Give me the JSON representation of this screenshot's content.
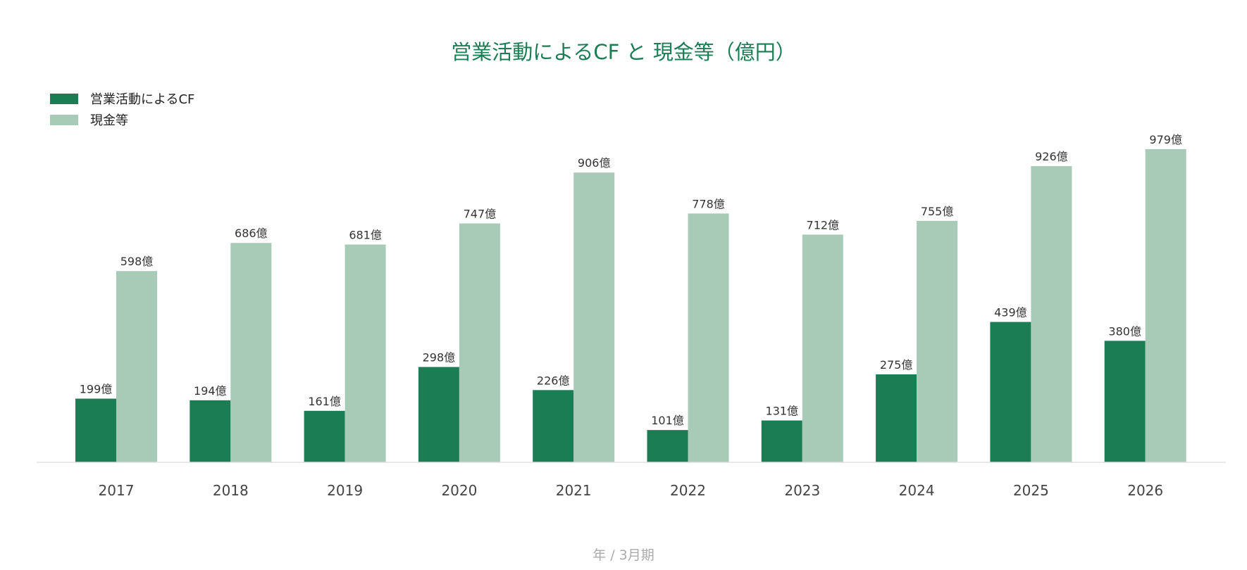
{
  "chart_data": {
    "type": "bar",
    "title": "営業活動によるCF と 現金等（億円）",
    "xlabel": "年 / 3月期",
    "ylabel": "",
    "categories": [
      "2017",
      "2018",
      "2019",
      "2020",
      "2021",
      "2022",
      "2023",
      "2024",
      "2025",
      "2026"
    ],
    "series": [
      {
        "name": "営業活動によるCF",
        "color": "#1b7d53",
        "values": [
          199,
          194,
          161,
          298,
          226,
          101,
          131,
          275,
          439,
          380
        ],
        "labels": [
          "199億",
          "194億",
          "161億",
          "298億",
          "226億",
          "101億",
          "131億",
          "275億",
          "439億",
          "380億"
        ]
      },
      {
        "name": "現金等",
        "color": "#a8cbb7",
        "values": [
          598,
          686,
          681,
          747,
          906,
          778,
          712,
          755,
          926,
          979
        ],
        "labels": [
          "598億",
          "686億",
          "681億",
          "747億",
          "906億",
          "778億",
          "712億",
          "755億",
          "926億",
          "979億"
        ]
      }
    ],
    "ylim": [
      0,
      1000
    ],
    "grid": false,
    "legend_position": "top-left",
    "title_color": "#1b7d53",
    "axis_color": "#e0e0e0"
  }
}
